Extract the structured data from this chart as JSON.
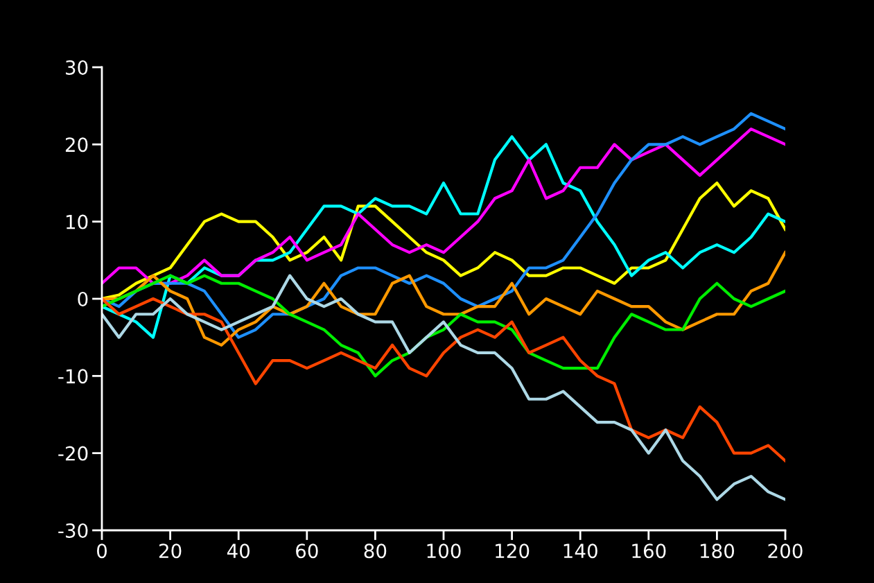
{
  "chart_data": {
    "type": "line",
    "x": [
      0,
      5,
      10,
      15,
      20,
      25,
      30,
      35,
      40,
      45,
      50,
      55,
      60,
      65,
      70,
      75,
      80,
      85,
      90,
      95,
      100,
      105,
      110,
      115,
      120,
      125,
      130,
      135,
      140,
      145,
      150,
      155,
      160,
      165,
      170,
      175,
      180,
      185,
      190,
      195,
      200
    ],
    "xlim": [
      0,
      200
    ],
    "xticks": [
      0,
      20,
      40,
      60,
      80,
      100,
      120,
      140,
      160,
      180,
      200
    ],
    "ylim": [
      -30,
      30
    ],
    "yticks": [
      -30,
      -20,
      -10,
      0,
      10,
      20,
      30
    ],
    "marker": "none",
    "line_style": "solid",
    "series": [
      {
        "color": "#ffff00",
        "values": [
          0,
          0.5,
          2,
          3,
          4,
          7,
          10,
          11,
          10,
          10,
          8,
          5,
          6,
          8,
          5,
          12,
          12,
          10,
          8,
          6,
          5,
          3,
          4,
          6,
          5,
          3,
          3,
          4,
          4,
          3,
          2,
          4,
          4,
          5,
          9,
          13,
          15,
          12,
          14,
          13,
          9
        ]
      },
      {
        "color": "#00ffff",
        "values": [
          -1,
          -2,
          -3,
          -5,
          3,
          2,
          4,
          3,
          3,
          5,
          5,
          6,
          9,
          12,
          12,
          11,
          13,
          12,
          12,
          11,
          15,
          11,
          11,
          18,
          21,
          18,
          20,
          15,
          14,
          10,
          7,
          3,
          5,
          6,
          4,
          6,
          7,
          6,
          8,
          11,
          10
        ]
      },
      {
        "color": "#ff00ff",
        "values": [
          2,
          4,
          4,
          2,
          2,
          3,
          5,
          3,
          3,
          5,
          6,
          8,
          5,
          6,
          7,
          11,
          9,
          7,
          6,
          7,
          6,
          8,
          10,
          13,
          14,
          18,
          13,
          14,
          17,
          17,
          20,
          18,
          19,
          20,
          18,
          16,
          18,
          20,
          22,
          21,
          20
        ]
      },
      {
        "color": "#1e90ff",
        "values": [
          0,
          -1,
          1,
          2,
          2,
          2,
          1,
          -2,
          -5,
          -4,
          -2,
          -2,
          -1,
          0,
          3,
          4,
          4,
          3,
          2,
          3,
          2,
          0,
          -1,
          0,
          1,
          4,
          4,
          5,
          8,
          11,
          15,
          18,
          20,
          20,
          21,
          20,
          21,
          22,
          24,
          23,
          22
        ]
      },
      {
        "color": "#ff9900",
        "values": [
          0,
          0,
          1,
          3,
          1,
          0,
          -5,
          -6,
          -4,
          -3,
          -1,
          -2,
          -1,
          2,
          -1,
          -2,
          -2,
          2,
          3,
          -1,
          -2,
          -2,
          -1,
          -1,
          2,
          -2,
          0,
          -1,
          -2,
          1,
          0,
          -1,
          -1,
          -3,
          -4,
          -3,
          -2,
          -2,
          1,
          2,
          6
        ]
      },
      {
        "color": "#00ee00",
        "values": [
          -1,
          0,
          1,
          2,
          3,
          2,
          3,
          2,
          2,
          1,
          0,
          -2,
          -3,
          -4,
          -6,
          -7,
          -10,
          -8,
          -7,
          -5,
          -4,
          -2,
          -3,
          -3,
          -4,
          -7,
          -8,
          -9,
          -9,
          -9,
          -5,
          -2,
          -3,
          -4,
          -4,
          0,
          2,
          0,
          -1,
          0,
          1
        ]
      },
      {
        "color": "#ff4500",
        "values": [
          0,
          -2,
          -1,
          0,
          -1,
          -2,
          -2,
          -3,
          -7,
          -11,
          -8,
          -8,
          -9,
          -8,
          -7,
          -8,
          -9,
          -6,
          -9,
          -10,
          -7,
          -5,
          -4,
          -5,
          -3,
          -7,
          -6,
          -5,
          -8,
          -10,
          -11,
          -17,
          -18,
          -17,
          -18,
          -14,
          -16,
          -20,
          -20,
          -19,
          -21
        ]
      },
      {
        "color": "#add8e6",
        "values": [
          -2,
          -5,
          -2,
          -2,
          0,
          -2,
          -3,
          -4,
          -3,
          -2,
          -1,
          3,
          0,
          -1,
          0,
          -2,
          -3,
          -3,
          -7,
          -5,
          -3,
          -6,
          -7,
          -7,
          -9,
          -13,
          -13,
          -12,
          -14,
          -16,
          -16,
          -17,
          -20,
          -17,
          -21,
          -23,
          -26,
          -24,
          -23,
          -25,
          -26
        ]
      }
    ]
  }
}
